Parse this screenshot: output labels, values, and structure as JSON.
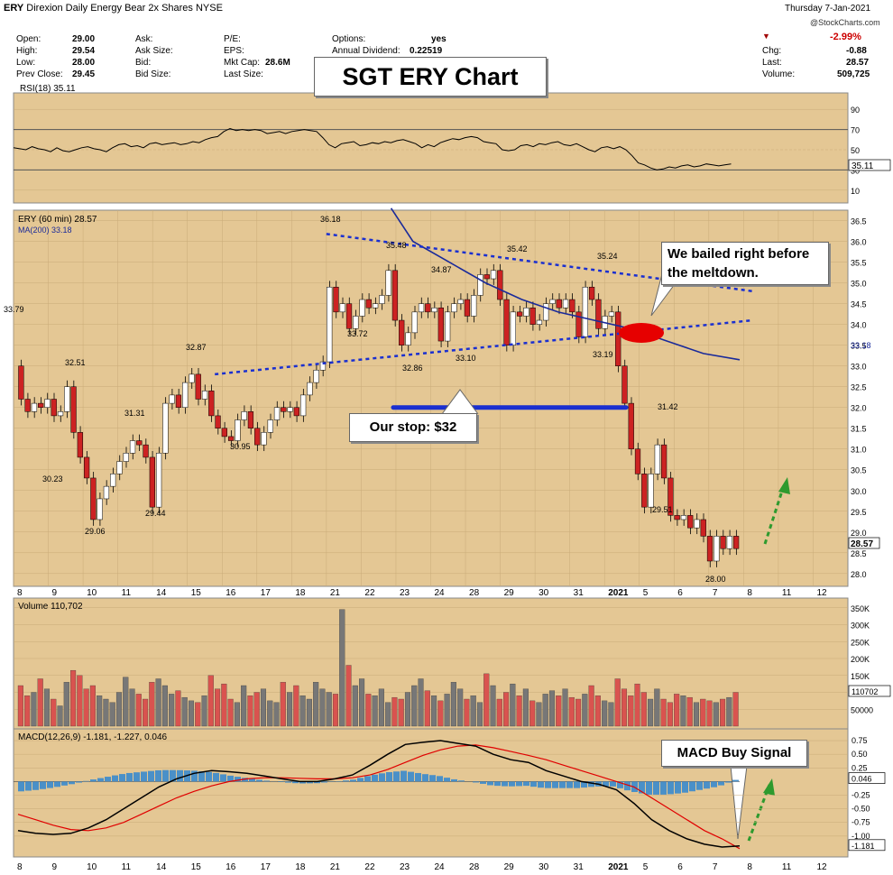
{
  "header": {
    "symbol": "ERY",
    "name": "Direxion Daily Energy Bear 2x Shares",
    "exchange": "NYSE",
    "date": "Thursday   7-Jan-2021",
    "watermark": "@StockCharts.com",
    "open": {
      "label": "Open:",
      "value": "29.00"
    },
    "high": {
      "label": "High:",
      "value": "29.54"
    },
    "low": {
      "label": "Low:",
      "value": "28.00"
    },
    "prev_close": {
      "label": "Prev Close:",
      "value": "29.45"
    },
    "ask": {
      "label": "Ask:"
    },
    "ask_size": {
      "label": "Ask Size:"
    },
    "bid": {
      "label": "Bid:"
    },
    "bid_size": {
      "label": "Bid Size:"
    },
    "pe": {
      "label": "P/E:"
    },
    "eps": {
      "label": "EPS:"
    },
    "mkt_cap": {
      "label": "Mkt Cap:",
      "value": "28.6M"
    },
    "last_size": {
      "label": "Last Size:"
    },
    "options": {
      "label": "Options:",
      "value": "yes"
    },
    "dividend": {
      "label": "Annual Dividend:",
      "value": "0.22519"
    },
    "change_pct": "-2.99%",
    "chg": {
      "label": "Chg:",
      "value": "-0.88"
    },
    "last": {
      "label": "Last:",
      "value": "28.57"
    },
    "volume": {
      "label": "Volume:",
      "value": "509,725"
    }
  },
  "colors": {
    "up": "#ffffff",
    "down": "#cc2222",
    "vol_up": "#777777",
    "vol_down": "#d9534f",
    "panel_bg": "#e4c794",
    "annotation_blue": "#1a2fd0",
    "arrow_green": "#2e9a2e",
    "macd_hist": "#4a90c8"
  },
  "callouts": {
    "title": "SGT ERY Chart",
    "bailed": "We bailed right before the meltdown.",
    "stop": "Our stop: $32",
    "macd": "MACD Buy Signal"
  },
  "chart_data": {
    "type": "candlestick",
    "panels": {
      "rsi": {
        "label": "RSI(18) 35.11",
        "ticks": [
          90,
          70,
          50,
          30,
          10
        ],
        "last_value": "35.11",
        "values": [
          52,
          51,
          50,
          53,
          51,
          50,
          48,
          52,
          49,
          48,
          50,
          52,
          53,
          51,
          50,
          48,
          52,
          55,
          56,
          53,
          54,
          52,
          56,
          57,
          55,
          56,
          57,
          55,
          56,
          58,
          57,
          60,
          62,
          63,
          68,
          71,
          69,
          70,
          69,
          70,
          69,
          66,
          67,
          68,
          66,
          68,
          69,
          70,
          69,
          68,
          62,
          55,
          52,
          56,
          57,
          58,
          54,
          55,
          57,
          56,
          58,
          57,
          59,
          60,
          58,
          56,
          52,
          55,
          53,
          57,
          59,
          61,
          60,
          62,
          63,
          62,
          58,
          57,
          56,
          50,
          49,
          50,
          54,
          55,
          53,
          56,
          55,
          57,
          58,
          55,
          54,
          56,
          53,
          50,
          48,
          52,
          53,
          51,
          53,
          50,
          44,
          37,
          35,
          32,
          30,
          31,
          33,
          32,
          34,
          35,
          33,
          34,
          36,
          35,
          34,
          35,
          36
        ]
      },
      "price": {
        "legend": "ERY (60 min) 28.57",
        "ma_legend": "MA(200) 33.18",
        "last_label": "28.57",
        "ma_last_label": "33.18",
        "y_ticks": [
          36.5,
          36.0,
          35.5,
          35.0,
          34.5,
          34.0,
          33.5,
          33.0,
          32.5,
          32.0,
          31.5,
          31.0,
          30.5,
          30.0,
          29.5,
          29.0,
          28.5,
          28.0
        ],
        "x_labels": [
          "8",
          "9",
          "10",
          "11",
          "14",
          "15",
          "16",
          "17",
          "18",
          "21",
          "22",
          "23",
          "24",
          "28",
          "29",
          "30",
          "31",
          "2021",
          "5",
          "6",
          "7",
          "8",
          "11",
          "12"
        ],
        "annotations": [
          "33.79",
          "32.51",
          "30.23",
          "29.06",
          "31.31",
          "29.44",
          "32.87",
          "30.95",
          "36.18",
          "35.48",
          "33.72",
          "32.86",
          "34.87",
          "33.10",
          "35.42",
          "33.19",
          "35.24",
          "31.42",
          "29.51",
          "28.00"
        ],
        "candles": [
          [
            33.0,
            32.2
          ],
          [
            32.2,
            31.9
          ],
          [
            31.9,
            32.1
          ],
          [
            32.1,
            32.0
          ],
          [
            32.0,
            32.2
          ],
          [
            32.2,
            31.8
          ],
          [
            31.8,
            31.9
          ],
          [
            31.9,
            32.5
          ],
          [
            32.5,
            31.4
          ],
          [
            31.4,
            30.8
          ],
          [
            30.8,
            30.3
          ],
          [
            30.3,
            29.3
          ],
          [
            29.3,
            29.8
          ],
          [
            29.8,
            30.1
          ],
          [
            30.1,
            30.4
          ],
          [
            30.4,
            30.7
          ],
          [
            30.7,
            30.9
          ],
          [
            30.9,
            31.2
          ],
          [
            31.2,
            31.1
          ],
          [
            31.1,
            30.8
          ],
          [
            30.8,
            29.6
          ],
          [
            29.6,
            30.9
          ],
          [
            30.9,
            32.1
          ],
          [
            32.1,
            32.3
          ],
          [
            32.3,
            32.0
          ],
          [
            32.0,
            32.6
          ],
          [
            32.6,
            32.8
          ],
          [
            32.8,
            32.2
          ],
          [
            32.2,
            32.4
          ],
          [
            32.4,
            31.8
          ],
          [
            31.8,
            31.5
          ],
          [
            31.5,
            31.3
          ],
          [
            31.3,
            31.2
          ],
          [
            31.2,
            31.7
          ],
          [
            31.7,
            31.9
          ],
          [
            31.9,
            31.5
          ],
          [
            31.5,
            31.1
          ],
          [
            31.1,
            31.4
          ],
          [
            31.4,
            31.7
          ],
          [
            31.7,
            32.0
          ],
          [
            32.0,
            31.9
          ],
          [
            31.9,
            32.0
          ],
          [
            32.0,
            31.8
          ],
          [
            31.8,
            32.3
          ],
          [
            32.3,
            32.6
          ],
          [
            32.6,
            32.9
          ],
          [
            32.9,
            33.1
          ],
          [
            33.1,
            34.9
          ],
          [
            34.9,
            34.3
          ],
          [
            34.3,
            34.5
          ],
          [
            34.5,
            33.9
          ],
          [
            33.9,
            34.2
          ],
          [
            34.2,
            34.6
          ],
          [
            34.6,
            34.4
          ],
          [
            34.4,
            34.5
          ],
          [
            34.5,
            34.7
          ],
          [
            34.7,
            35.3
          ],
          [
            35.3,
            34.1
          ],
          [
            34.1,
            33.5
          ],
          [
            33.5,
            33.8
          ],
          [
            33.8,
            34.3
          ],
          [
            34.3,
            34.5
          ],
          [
            34.5,
            34.3
          ],
          [
            34.3,
            34.4
          ],
          [
            34.4,
            33.6
          ],
          [
            33.6,
            34.3
          ],
          [
            34.3,
            34.5
          ],
          [
            34.5,
            34.6
          ],
          [
            34.6,
            34.2
          ],
          [
            34.2,
            34.7
          ],
          [
            34.7,
            35.2
          ],
          [
            35.2,
            35.1
          ],
          [
            35.1,
            35.3
          ],
          [
            35.3,
            34.6
          ],
          [
            34.6,
            33.5
          ],
          [
            33.5,
            34.3
          ],
          [
            34.3,
            34.2
          ],
          [
            34.2,
            34.4
          ],
          [
            34.4,
            34.0
          ],
          [
            34.0,
            34.1
          ],
          [
            34.1,
            34.5
          ],
          [
            34.5,
            34.6
          ],
          [
            34.6,
            34.4
          ],
          [
            34.4,
            34.6
          ],
          [
            34.6,
            34.3
          ],
          [
            34.3,
            33.7
          ],
          [
            33.7,
            34.9
          ],
          [
            34.9,
            34.6
          ],
          [
            34.6,
            33.9
          ],
          [
            33.9,
            34.2
          ],
          [
            34.2,
            34.3
          ],
          [
            34.3,
            33.0
          ],
          [
            33.0,
            32.1
          ],
          [
            32.1,
            31.0
          ],
          [
            31.0,
            30.4
          ],
          [
            30.4,
            29.6
          ],
          [
            29.6,
            30.4
          ],
          [
            30.4,
            31.1
          ],
          [
            31.1,
            30.3
          ],
          [
            30.3,
            29.4
          ],
          [
            29.4,
            29.3
          ],
          [
            29.3,
            29.4
          ],
          [
            29.4,
            29.1
          ],
          [
            29.1,
            29.3
          ],
          [
            29.3,
            28.9
          ],
          [
            28.9,
            28.3
          ],
          [
            28.3,
            28.9
          ],
          [
            28.9,
            28.6
          ],
          [
            28.6,
            28.9
          ],
          [
            28.9,
            28.6
          ]
        ],
        "ma200": [
          {
            "x": 0.52,
            "y": 36.8
          },
          {
            "x": 0.55,
            "y": 36.0
          },
          {
            "x": 0.6,
            "y": 35.5
          },
          {
            "x": 0.65,
            "y": 35.0
          },
          {
            "x": 0.7,
            "y": 34.6
          },
          {
            "x": 0.75,
            "y": 34.3
          },
          {
            "x": 0.8,
            "y": 34.1
          },
          {
            "x": 0.85,
            "y": 33.9
          },
          {
            "x": 0.9,
            "y": 33.6
          },
          {
            "x": 0.95,
            "y": 33.3
          },
          {
            "x": 1.0,
            "y": 33.15
          }
        ]
      },
      "volume": {
        "legend": "Volume 110,702",
        "ticks": [
          "350K",
          "300K",
          "250K",
          "200K",
          "150K",
          "100K",
          "50000"
        ],
        "last_label": "110702",
        "values": [
          120,
          90,
          100,
          140,
          110,
          80,
          60,
          130,
          165,
          150,
          110,
          120,
          90,
          80,
          70,
          100,
          145,
          110,
          95,
          80,
          130,
          140,
          120,
          95,
          105,
          85,
          75,
          70,
          90,
          150,
          110,
          125,
          80,
          70,
          120,
          90,
          100,
          110,
          75,
          70,
          130,
          100,
          120,
          90,
          80,
          130,
          110,
          100,
          95,
          345,
          180,
          120,
          140,
          95,
          90,
          110,
          70,
          85,
          80,
          100,
          120,
          140,
          105,
          90,
          75,
          95,
          130,
          110,
          80,
          90,
          70,
          155,
          120,
          80,
          100,
          125,
          90,
          110,
          75,
          70,
          95,
          105,
          90,
          110,
          85,
          80,
          95,
          120,
          90,
          75,
          70,
          140,
          110,
          90,
          125,
          100,
          80,
          110,
          80,
          70,
          95,
          90,
          85,
          70,
          80,
          75,
          70,
          80,
          85,
          100
        ]
      },
      "macd": {
        "legend": "MACD(12,26,9) -1.181, -1.227, 0.046",
        "ticks": [
          "0.75",
          "0.50",
          "0.25",
          "0.046",
          "-0.25",
          "-0.50",
          "-0.75",
          "-1.00",
          "-1.181"
        ],
        "macd_line": [
          -0.9,
          -0.95,
          -0.97,
          -0.95,
          -0.85,
          -0.7,
          -0.5,
          -0.3,
          -0.1,
          0.05,
          0.15,
          0.2,
          0.18,
          0.15,
          0.1,
          0.05,
          0.0,
          0.0,
          0.05,
          0.12,
          0.3,
          0.5,
          0.68,
          0.72,
          0.75,
          0.7,
          0.65,
          0.5,
          0.4,
          0.35,
          0.2,
          0.1,
          0.0,
          -0.05,
          -0.15,
          -0.4,
          -0.7,
          -0.9,
          -1.05,
          -1.15,
          -1.2,
          -1.18
        ],
        "signal_line": [
          -0.6,
          -0.7,
          -0.8,
          -0.88,
          -0.9,
          -0.85,
          -0.75,
          -0.6,
          -0.45,
          -0.3,
          -0.18,
          -0.08,
          0.0,
          0.05,
          0.07,
          0.07,
          0.06,
          0.05,
          0.05,
          0.07,
          0.12,
          0.22,
          0.35,
          0.48,
          0.58,
          0.65,
          0.67,
          0.62,
          0.55,
          0.48,
          0.4,
          0.3,
          0.2,
          0.1,
          0.0,
          -0.1,
          -0.3,
          -0.5,
          -0.7,
          -0.9,
          -1.05,
          -1.23
        ]
      }
    },
    "trendlines": [
      {
        "from": {
          "i": 47,
          "p": 36.18
        },
        "to": {
          "i": 112,
          "p": 34.8
        }
      },
      {
        "from": {
          "i": 30,
          "p": 32.8
        },
        "to": {
          "i": 112,
          "p": 34.1
        }
      }
    ],
    "stop_level": 32.0
  }
}
